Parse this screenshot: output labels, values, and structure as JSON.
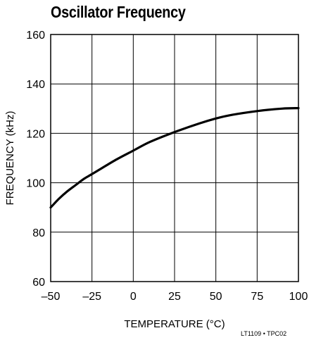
{
  "chart_data": {
    "type": "line",
    "title": "Oscillator Frequency",
    "xlabel": "TEMPERATURE (°C)",
    "ylabel": "FREQUENCY (kHz)",
    "xlim": [
      -50,
      100
    ],
    "ylim": [
      60,
      160
    ],
    "x_ticks": [
      "–50",
      "–25",
      "0",
      "25",
      "50",
      "75",
      "100"
    ],
    "y_ticks": [
      "60",
      "80",
      "100",
      "120",
      "140",
      "160"
    ],
    "grid": true,
    "series": [
      {
        "x": [
          -50,
          -45,
          -40,
          -35,
          -30,
          -25,
          -20,
          -10,
          0,
          10,
          25,
          40,
          50,
          60,
          75,
          90,
          100
        ],
        "y": [
          90,
          93.5,
          96.5,
          99,
          101.5,
          103.5,
          105.5,
          109.5,
          113,
          116.5,
          120.5,
          124,
          126,
          127.5,
          129,
          130,
          130.2
        ]
      }
    ],
    "footnote": "LT1109 • TPC02"
  }
}
